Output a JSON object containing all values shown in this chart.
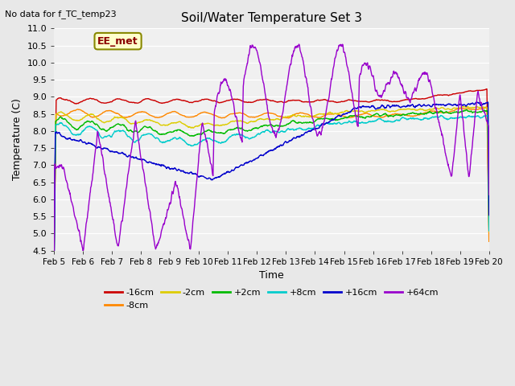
{
  "title": "Soil/Water Temperature Set 3",
  "xlabel": "Time",
  "ylabel": "Temperature (C)",
  "note": "No data for f_TC_temp23",
  "legend_label": "EE_met",
  "ylim": [
    4.5,
    11.0
  ],
  "yticks": [
    4.5,
    5.0,
    5.5,
    6.0,
    6.5,
    7.0,
    7.5,
    8.0,
    8.5,
    9.0,
    9.5,
    10.0,
    10.5,
    11.0
  ],
  "xtick_labels": [
    "Feb 5",
    "Feb 6",
    "Feb 7",
    "Feb 8",
    "Feb 9",
    "Feb 10",
    "Feb 11",
    "Feb 12",
    "Feb 13",
    "Feb 14",
    "Feb 15",
    "Feb 16",
    "Feb 17",
    "Feb 18",
    "Feb 19",
    "Feb 20"
  ],
  "series_labels": [
    "-16cm",
    "-8cm",
    "-2cm",
    "+2cm",
    "+8cm",
    "+16cm",
    "+64cm"
  ],
  "series_colors": [
    "#cc0000",
    "#ff8800",
    "#ddcc00",
    "#00bb00",
    "#00cccc",
    "#0000cc",
    "#9900cc"
  ],
  "bg_color": "#e8e8e8",
  "plot_bg": "#f0f0f0",
  "n_points": 1440
}
